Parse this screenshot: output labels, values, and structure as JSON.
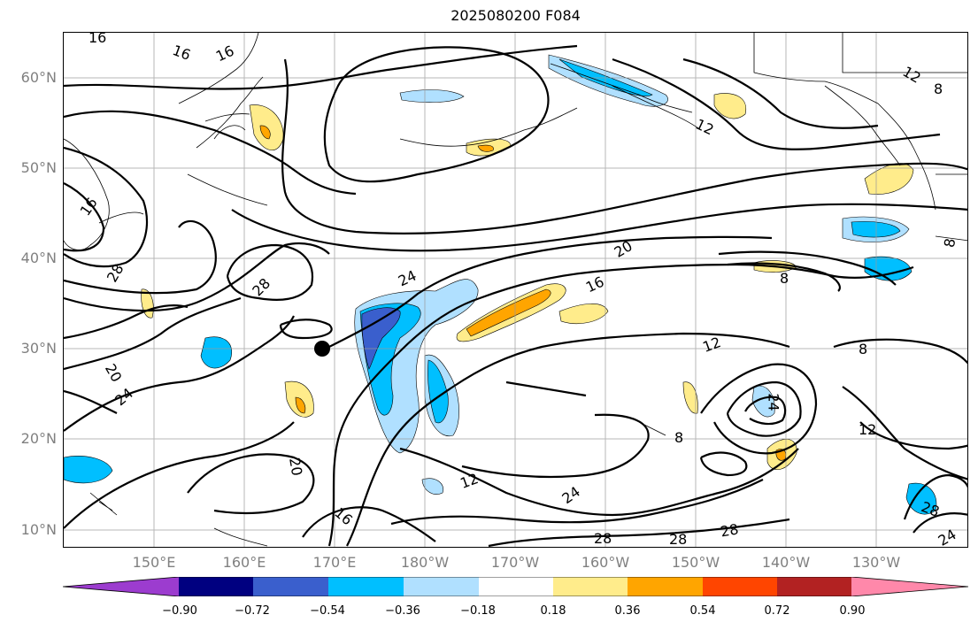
{
  "title": "2025080200 F084",
  "lat_labels": [
    "60°N",
    "50°N",
    "40°N",
    "30°N",
    "20°N",
    "10°N"
  ],
  "lon_labels": [
    "150°E",
    "160°E",
    "170°E",
    "180°W",
    "170°W",
    "160°W",
    "150°W",
    "140°W",
    "130°W"
  ],
  "contour_labels": [
    "16",
    "16",
    "16",
    "16",
    "12",
    "8",
    "12",
    "20",
    "16",
    "24",
    "28",
    "28",
    "20",
    "24",
    "20",
    "16",
    "12",
    "24",
    "28",
    "28",
    "28",
    "8",
    "12",
    "8",
    "24",
    "12",
    "8",
    "28",
    "24",
    "8",
    "12"
  ],
  "colorbar": {
    "tick_labels": [
      "−0.90",
      "−0.72",
      "−0.54",
      "−0.36",
      "−0.18",
      "0.18",
      "0.36",
      "0.54",
      "0.72",
      "0.90"
    ],
    "colors": [
      "#9c3ccf",
      "#000080",
      "#3a5fcd",
      "#00bfff",
      "#b0e0ff",
      "#ffffff",
      "#ffec8b",
      "#ffa500",
      "#ff4500",
      "#b22222",
      "#ff88aa"
    ]
  },
  "marker": "storm-position-dot"
}
